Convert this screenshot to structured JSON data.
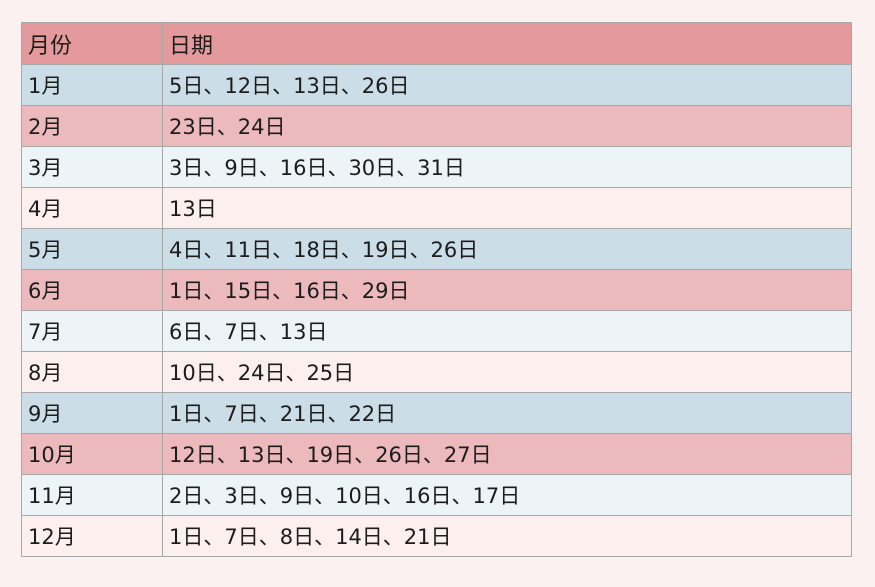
{
  "table": {
    "headers": [
      "月份",
      "日期"
    ],
    "rows": [
      {
        "month": "1月",
        "dates": "5日、12日、13日、26日"
      },
      {
        "month": "2月",
        "dates": "23日、24日"
      },
      {
        "month": "3月",
        "dates": "3日、9日、16日、30日、31日"
      },
      {
        "month": "4月",
        "dates": "13日"
      },
      {
        "month": "5月",
        "dates": "4日、11日、18日、19日、26日"
      },
      {
        "month": "6月",
        "dates": "1日、15日、16日、29日"
      },
      {
        "month": "7月",
        "dates": "6日、7日、13日"
      },
      {
        "month": "8月",
        "dates": "10日、24日、25日"
      },
      {
        "month": "9月",
        "dates": "1日、7日、21日、22日"
      },
      {
        "month": "10月",
        "dates": "12日、13日、19日、26日、27日"
      },
      {
        "month": "11月",
        "dates": "2日、3日、9日、10日、16日、17日"
      },
      {
        "month": "12月",
        "dates": "1日、7日、8日、14日、21日"
      }
    ]
  },
  "colors": {
    "header_bg": "#e49a9c",
    "row_blue": "#cbdde6",
    "row_pink": "#ecb9bd",
    "row_light": "#edf4f8",
    "row_cream": "#fbf0ee",
    "border": "#a8a8a8"
  }
}
